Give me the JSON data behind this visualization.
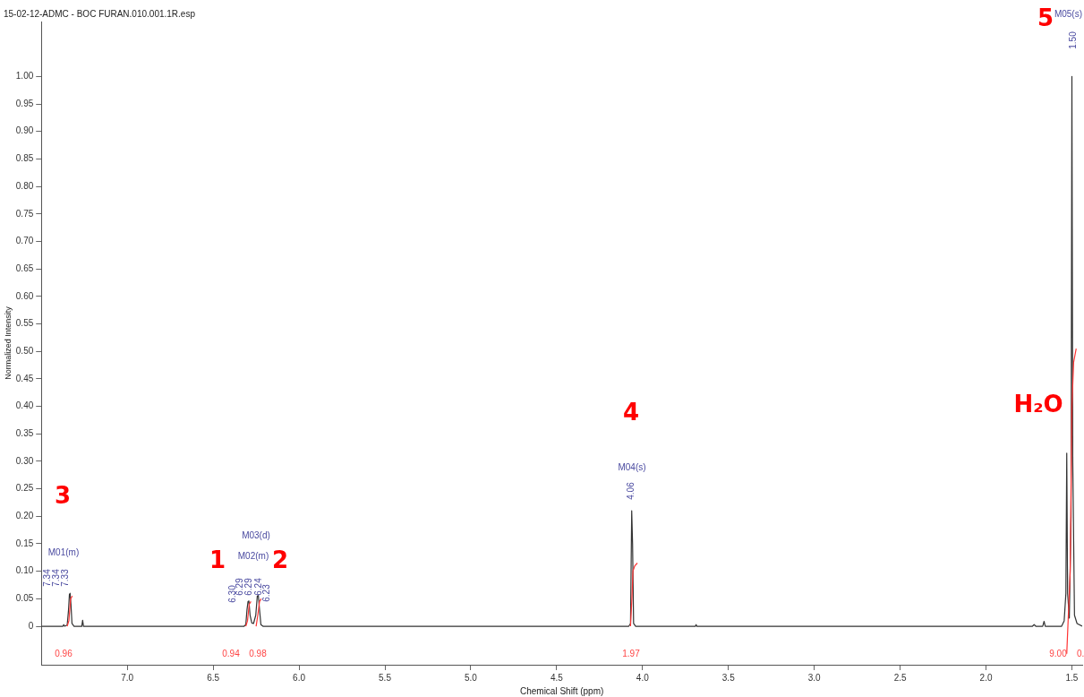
{
  "chart_data": {
    "type": "line",
    "title": "15-02-12-ADMC - BOC FURAN.010.001.1R.esp",
    "xlabel": "Chemical Shift (ppm)",
    "ylabel": "Normalized Intensity",
    "xlim": [
      7.5,
      1.44
    ],
    "ylim": [
      -0.07,
      1.1
    ],
    "xticks": [
      {
        "value": 7,
        "label": "7.0"
      },
      {
        "value": 6.5,
        "label": "6.5"
      },
      {
        "value": 6,
        "label": "6.0"
      },
      {
        "value": 5.5,
        "label": "5.5"
      },
      {
        "value": 5,
        "label": "5.0"
      },
      {
        "value": 4.5,
        "label": "4.5"
      },
      {
        "value": 4,
        "label": "4.0"
      },
      {
        "value": 3.5,
        "label": "3.5"
      },
      {
        "value": 3,
        "label": "3.0"
      },
      {
        "value": 2.5,
        "label": "2.5"
      },
      {
        "value": 2,
        "label": "2.0"
      },
      {
        "value": 1.5,
        "label": "1.5"
      }
    ],
    "yticks": [
      0,
      0.05,
      {
        "value": 0.1,
        "label": "0.10"
      },
      0.15,
      {
        "value": 0.2,
        "label": "0.20"
      },
      0.25,
      {
        "value": 0.3,
        "label": "0.30"
      },
      0.35,
      {
        "value": 0.4,
        "label": "0.40"
      },
      0.45,
      {
        "value": 0.5,
        "label": "0.50"
      },
      0.55,
      {
        "value": 0.6,
        "label": "0.60"
      },
      0.65,
      {
        "value": 0.7,
        "label": "0.70"
      },
      0.75,
      {
        "value": 0.8,
        "label": "0.80"
      },
      0.85,
      {
        "value": 0.9,
        "label": "0.90"
      },
      0.95,
      {
        "value": 1,
        "label": "1.00"
      }
    ],
    "grid": false,
    "legend": false,
    "marker": "none",
    "line_style": "solid",
    "series": [
      {
        "color": "#333333",
        "x": [
          7.5,
          7.375,
          7.37,
          7.365,
          7.35,
          7.342,
          7.337,
          7.333,
          7.328,
          7.322,
          7.31,
          7.265,
          7.26,
          7.255,
          6.32,
          6.31,
          6.303,
          6.297,
          6.292,
          6.285,
          6.275,
          6.265,
          6.252,
          6.243,
          6.237,
          6.23,
          6.222,
          6.21,
          4.08,
          4.07,
          4.063,
          4.058,
          4.052,
          4.04,
          3.692,
          3.688,
          3.684,
          1.73,
          1.72,
          1.71,
          1.67,
          1.662,
          1.655,
          1.56,
          1.545,
          1.535,
          1.53,
          1.525,
          1.515,
          1.505,
          1.5,
          1.495,
          1.485,
          1.47,
          1.44
        ],
        "values": [
          0,
          0,
          0.003,
          0,
          0.002,
          0.03,
          0.058,
          0.06,
          0.04,
          0.005,
          0,
          0,
          0.011,
          0,
          0,
          0.003,
          0.03,
          0.045,
          0.046,
          0.02,
          0.006,
          0.005,
          0.02,
          0.055,
          0.056,
          0.03,
          0.003,
          0,
          0,
          0.005,
          0.21,
          0.15,
          0.005,
          0,
          0,
          0.003,
          0,
          0,
          0.003,
          0,
          0,
          0.009,
          0,
          0,
          0.01,
          0.06,
          0.315,
          0.06,
          0.015,
          0.2,
          1.0,
          0.3,
          0.02,
          0.005,
          0
        ]
      },
      {
        "color": "#ff3333",
        "x": [
          7.35,
          7.34,
          7.33,
          7.32
        ],
        "values": [
          0,
          0.01,
          0.05,
          0.055
        ]
      },
      {
        "color": "#ff3333",
        "x": [
          6.31,
          6.3,
          6.29,
          6.28
        ],
        "values": [
          0,
          0.01,
          0.04,
          0.045
        ]
      },
      {
        "color": "#ff3333",
        "x": [
          6.25,
          6.24,
          6.23,
          6.22
        ],
        "values": [
          0,
          0.02,
          0.045,
          0.05
        ]
      },
      {
        "color": "#ff3333",
        "x": [
          4.07,
          4.062,
          4.056,
          4.045,
          4.03
        ],
        "values": [
          0,
          0.05,
          0.1,
          0.11,
          0.115
        ]
      },
      {
        "color": "#ff3333",
        "x": [
          1.53,
          1.51,
          1.5,
          1.49,
          1.475
        ],
        "values": [
          -0.05,
          0.1,
          0.4,
          0.48,
          0.505
        ]
      }
    ],
    "annotations": [
      "3",
      "1",
      "2",
      "4",
      "5",
      "H₂O",
      "M01(m)",
      "M02(m)",
      "M03(d)",
      "M04(s)",
      "M05(s)",
      "7.34",
      "7.34",
      "7.33",
      "6.30",
      "6.29",
      "6.29",
      "6.24",
      "6.23",
      "4.06",
      "1.50",
      "0.96",
      "0.94",
      "0.98",
      "1.97",
      "9.00",
      "0."
    ]
  }
}
